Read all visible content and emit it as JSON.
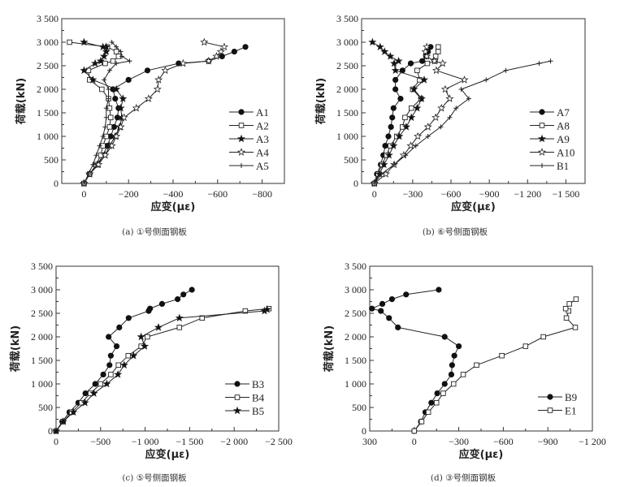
{
  "chart_data": [
    {
      "type": "line",
      "panel": "a",
      "caption": "(a) ①号侧面钢板",
      "xlabel": "应变(με)",
      "ylabel": "荷载(kN)",
      "xlim": [
        100,
        -900
      ],
      "ylim": [
        0,
        3500
      ],
      "xticks": [
        0,
        -200,
        -400,
        -600,
        -800
      ],
      "xtick_labels": [
        "0",
        "−200",
        "−400",
        "−600",
        "−800"
      ],
      "yticks": [
        0,
        500,
        1000,
        1500,
        2000,
        2500,
        3000,
        3500
      ],
      "ytick_labels": [
        "0",
        "500",
        "1 000",
        "1 500",
        "2 000",
        "2 500",
        "3 000",
        "3 500"
      ],
      "legend_position": "lower-right",
      "series": [
        {
          "name": "A1",
          "marker": "filled-circle",
          "x": [
            0,
            -25,
            -60,
            -85,
            -105,
            -120,
            -135,
            -150,
            -155,
            -140,
            -130,
            -200,
            -285,
            -425,
            -560,
            -620,
            -675,
            -725
          ],
          "y": [
            0,
            200,
            400,
            600,
            800,
            1000,
            1200,
            1400,
            1600,
            1800,
            2000,
            2200,
            2400,
            2550,
            2600,
            2700,
            2800,
            2900
          ]
        },
        {
          "name": "A2",
          "marker": "open-square",
          "x": [
            0,
            -25,
            -55,
            -75,
            -85,
            -100,
            -115,
            -120,
            -115,
            -110,
            -80,
            -25,
            -20,
            -95,
            -130,
            -155,
            -145,
            -105,
            65
          ],
          "y": [
            0,
            200,
            400,
            600,
            800,
            1000,
            1200,
            1400,
            1600,
            1800,
            2000,
            2200,
            2400,
            2550,
            2600,
            2700,
            2800,
            2900,
            3000
          ]
        },
        {
          "name": "A3",
          "marker": "filled-star",
          "x": [
            0,
            -25,
            -60,
            -95,
            -115,
            -140,
            -160,
            -170,
            -165,
            -175,
            -145,
            -40,
            0,
            -50,
            -75,
            -90,
            -100,
            -100,
            -85,
            0
          ],
          "y": [
            0,
            200,
            400,
            600,
            800,
            1000,
            1200,
            1400,
            1600,
            1800,
            2000,
            2200,
            2400,
            2550,
            2600,
            2700,
            2800,
            2900,
            2900,
            3000
          ]
        },
        {
          "name": "A4",
          "marker": "open-star",
          "x": [
            0,
            -25,
            -65,
            -95,
            -125,
            -145,
            -165,
            -180,
            -235,
            -290,
            -330,
            -335,
            -365,
            -445,
            -560,
            -595,
            -615,
            -630,
            -540
          ],
          "y": [
            0,
            200,
            400,
            600,
            800,
            1000,
            1200,
            1400,
            1600,
            1800,
            2000,
            2200,
            2400,
            2550,
            2600,
            2700,
            2800,
            2900,
            3000
          ]
        },
        {
          "name": "A5",
          "marker": "plus",
          "x": [
            0,
            -20,
            -40,
            -55,
            -70,
            -85,
            -95,
            -100,
            -100,
            -110,
            -110,
            -90,
            -115,
            -145,
            -205,
            -170,
            -165,
            -145,
            -125
          ],
          "y": [
            0,
            200,
            400,
            600,
            800,
            1000,
            1200,
            1400,
            1600,
            1800,
            2000,
            2200,
            2400,
            2550,
            2600,
            2700,
            2800,
            2900,
            3000
          ]
        }
      ]
    },
    {
      "type": "line",
      "panel": "b",
      "caption": "(b) ⑥号侧面钢板",
      "xlabel": "应变(με)",
      "ylabel": "荷载(kN)",
      "xlim": [
        100,
        -1650
      ],
      "ylim": [
        0,
        3500
      ],
      "xticks": [
        0,
        -300,
        -600,
        -900,
        -1200,
        -1500
      ],
      "xtick_labels": [
        "0",
        "−300",
        "−600",
        "−900",
        "−1 200",
        "−1 500"
      ],
      "yticks": [
        0,
        500,
        1000,
        1500,
        2000,
        2500,
        3000,
        3500
      ],
      "ytick_labels": [
        "0",
        "500",
        "1 000",
        "1 500",
        "2 000",
        "2 500",
        "3 000",
        "3 500"
      ],
      "legend_position": "lower-right",
      "series": [
        {
          "name": "A7",
          "marker": "filled-circle",
          "x": [
            0,
            -20,
            -50,
            -70,
            -85,
            -110,
            -130,
            -140,
            -150,
            -205,
            -165,
            -165,
            -220,
            -285,
            -375,
            -405,
            -420,
            -440
          ],
          "y": [
            0,
            200,
            400,
            600,
            800,
            1000,
            1200,
            1400,
            1600,
            1800,
            2000,
            2200,
            2400,
            2550,
            2600,
            2700,
            2800,
            2900
          ]
        },
        {
          "name": "A8",
          "marker": "open-square",
          "x": [
            0,
            -30,
            -60,
            -95,
            -125,
            -175,
            -220,
            -240,
            -290,
            -365,
            -300,
            -355,
            -335,
            -415,
            -475,
            -480,
            -500,
            -500
          ],
          "y": [
            0,
            200,
            400,
            600,
            800,
            1000,
            1200,
            1400,
            1600,
            1800,
            2000,
            2200,
            2400,
            2550,
            2600,
            2700,
            2800,
            2900
          ]
        },
        {
          "name": "A9",
          "marker": "filled-star",
          "x": [
            0,
            -40,
            -75,
            -115,
            -150,
            -195,
            -250,
            -290,
            -335,
            -370,
            -310,
            -390,
            -165,
            -155,
            -190,
            -125,
            -80,
            -45,
            15
          ],
          "y": [
            0,
            200,
            400,
            600,
            800,
            1000,
            1200,
            1400,
            1600,
            1800,
            2000,
            2200,
            2400,
            2550,
            2600,
            2700,
            2800,
            2900,
            3000
          ]
        },
        {
          "name": "A10",
          "marker": "open-star",
          "x": [
            0,
            -90,
            -155,
            -230,
            -285,
            -340,
            -420,
            -480,
            -525,
            -590,
            -555,
            -705,
            -485,
            -535,
            -470,
            -410,
            -400,
            -410
          ],
          "y": [
            0,
            200,
            400,
            600,
            800,
            1000,
            1200,
            1400,
            1600,
            1800,
            2000,
            2200,
            2400,
            2550,
            2600,
            2700,
            2800,
            2900
          ]
        },
        {
          "name": "B1",
          "marker": "plus",
          "x": [
            0,
            -55,
            -155,
            -245,
            -325,
            -420,
            -520,
            -590,
            -640,
            -740,
            -680,
            -875,
            -1030,
            -1290,
            -1380
          ],
          "y": [
            0,
            200,
            400,
            600,
            800,
            1000,
            1200,
            1400,
            1600,
            1800,
            2000,
            2200,
            2400,
            2550,
            2600
          ]
        }
      ]
    },
    {
      "type": "line",
      "panel": "c",
      "caption": "(c) ⑤号侧面钢板",
      "xlabel": "应变(με)",
      "ylabel": "荷载(kN)",
      "xlim": [
        0,
        -2500
      ],
      "ylim": [
        0,
        3500
      ],
      "xticks": [
        0,
        -500,
        -1000,
        -1500,
        -2000,
        -2500
      ],
      "xtick_labels": [
        "0",
        "−500",
        "−1 000",
        "−1 500",
        "−2 000",
        "−2 500"
      ],
      "yticks": [
        0,
        500,
        1000,
        1500,
        2000,
        2500,
        3000,
        3500
      ],
      "ytick_labels": [
        "0",
        "500",
        "1 000",
        "1 500",
        "2 000",
        "2 500",
        "3 000",
        "3 500"
      ],
      "legend_position": "lower-right",
      "series": [
        {
          "name": "B3",
          "marker": "filled-circle",
          "x": [
            0,
            -70,
            -150,
            -250,
            -330,
            -440,
            -530,
            -600,
            -615,
            -680,
            -590,
            -710,
            -815,
            -1040,
            -1055,
            -1190,
            -1365,
            -1430,
            -1525
          ],
          "y": [
            0,
            200,
            400,
            600,
            800,
            1000,
            1200,
            1400,
            1600,
            1800,
            2000,
            2200,
            2400,
            2550,
            2600,
            2700,
            2800,
            2900,
            3000
          ]
        },
        {
          "name": "B4",
          "marker": "open-square",
          "x": [
            0,
            -80,
            -175,
            -285,
            -385,
            -500,
            -615,
            -700,
            -810,
            -955,
            -1025,
            -1385,
            -1640,
            -2125,
            -2390
          ],
          "y": [
            0,
            200,
            400,
            600,
            800,
            1000,
            1200,
            1400,
            1600,
            1800,
            2000,
            2200,
            2400,
            2550,
            2600
          ]
        },
        {
          "name": "B5",
          "marker": "filled-star",
          "x": [
            0,
            -80,
            -195,
            -325,
            -425,
            -570,
            -695,
            -765,
            -870,
            -995,
            -955,
            -1150,
            -1385,
            -2340,
            -2370
          ],
          "y": [
            0,
            200,
            400,
            600,
            800,
            1000,
            1200,
            1400,
            1600,
            1800,
            2000,
            2200,
            2400,
            2550,
            2580
          ]
        }
      ]
    },
    {
      "type": "line",
      "panel": "d",
      "caption": "(d) ③号侧面钢板",
      "xlabel": "应变(με)",
      "ylabel": "荷载(kN)",
      "xlim": [
        300,
        -1200
      ],
      "ylim": [
        0,
        3500
      ],
      "xticks": [
        300,
        0,
        -300,
        -600,
        -900,
        -1200
      ],
      "xtick_labels": [
        "300",
        "0",
        "−300",
        "−600",
        "−900",
        "−1 200"
      ],
      "yticks": [
        0,
        500,
        1000,
        1500,
        2000,
        2500,
        3000,
        3500
      ],
      "ytick_labels": [
        "0",
        "500",
        "1 000",
        "1 500",
        "2 000",
        "2 500",
        "3 000",
        "3 500"
      ],
      "legend_position": "lower-right",
      "series": [
        {
          "name": "B9",
          "marker": "filled-circle",
          "x": [
            0,
            -45,
            -75,
            -115,
            -155,
            -205,
            -250,
            -255,
            -270,
            -300,
            -205,
            110,
            170,
            225,
            285,
            215,
            150,
            55,
            -165
          ],
          "y": [
            0,
            200,
            400,
            600,
            800,
            1000,
            1200,
            1400,
            1600,
            1800,
            2000,
            2200,
            2400,
            2550,
            2600,
            2700,
            2800,
            2900,
            3000
          ]
        },
        {
          "name": "E1",
          "marker": "open-square",
          "x": [
            0,
            -50,
            -95,
            -150,
            -195,
            -265,
            -330,
            -420,
            -590,
            -750,
            -870,
            -1085,
            -1025,
            -1040,
            -1020,
            -1045,
            -1090
          ],
          "y": [
            0,
            200,
            400,
            600,
            800,
            1000,
            1200,
            1400,
            1600,
            1800,
            2000,
            2200,
            2400,
            2550,
            2600,
            2700,
            2800
          ]
        }
      ]
    }
  ]
}
